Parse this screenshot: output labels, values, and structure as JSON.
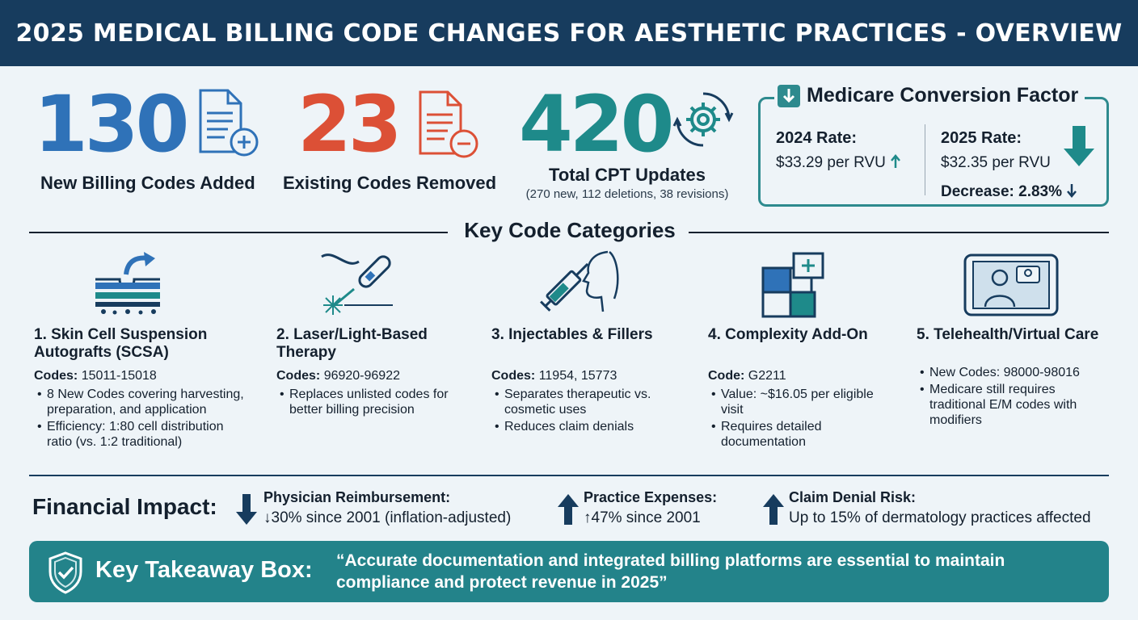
{
  "header": {
    "title": "2025 MEDICAL BILLING CODE CHANGES FOR AESTHETIC PRACTICES - OVERVIEW"
  },
  "stats": [
    {
      "number": "130",
      "label": "New Billing Codes Added",
      "color": "#2f72b8",
      "icon": "document-plus-icon"
    },
    {
      "number": "23",
      "label": "Existing Codes Removed",
      "color": "#dc5036",
      "icon": "document-minus-icon"
    },
    {
      "number": "420",
      "label": "Total CPT Updates",
      "sub": "(270 new, 112 deletions, 38 revisions)",
      "color": "#1e8a8a",
      "icon": "gear-icon"
    }
  ],
  "medicare": {
    "title": "Medicare Conversion Factor",
    "rate_2024": {
      "heading": "2024 Rate:",
      "value": "$33.29 per RVU"
    },
    "rate_2025": {
      "heading": "2025 Rate:",
      "value": "$32.35 per RVU"
    },
    "decrease": "Decrease: 2.83%"
  },
  "categories_title": "Key Code Categories",
  "categories": [
    {
      "title": "1. Skin Cell Suspension Autografts (SCSA)",
      "codes_label": "Codes:",
      "codes": "15011-15018",
      "bullets": [
        "8 New Codes covering harvesting, preparation, and application",
        "Efficiency: 1:80 cell distribution ratio (vs. 1:2 traditional)"
      ],
      "icon": "skin-layers-icon"
    },
    {
      "title": "2. Laser/Light-Based Therapy",
      "codes_label": "Codes:",
      "codes": "96920-96922",
      "bullets": [
        "Replaces unlisted codes for better billing precision"
      ],
      "icon": "laser-device-icon"
    },
    {
      "title": "3. Injectables & Fillers",
      "codes_label": "Codes:",
      "codes": "11954, 15773",
      "bullets": [
        "Separates therapeutic vs. cosmetic uses",
        "Reduces claim denials"
      ],
      "icon": "syringe-face-icon"
    },
    {
      "title": "4. Complexity Add-On",
      "codes_label": "Code:",
      "codes": "G2211",
      "bullets": [
        "Value: ~$16.05 per eligible visit",
        "Requires detailed documentation"
      ],
      "icon": "puzzle-icon"
    },
    {
      "title": "5. Telehealth/Virtual Care",
      "bullets": [
        "New Codes: 98000-98016",
        "Medicare still requires traditional E/M codes with modifiers"
      ],
      "icon": "telehealth-tablet-icon"
    }
  ],
  "financial": {
    "title": "Financial Impact:",
    "items": [
      {
        "heading": "Physician Reimbursement:",
        "value": "↓30% since 2001 (inflation-adjusted)",
        "direction": "down"
      },
      {
        "heading": "Practice Expenses:",
        "value": "↑47% since 2001",
        "direction": "up"
      },
      {
        "heading": "Claim Denial Risk:",
        "value": "Up to 15% of dermatology practices affected",
        "direction": "up"
      }
    ]
  },
  "takeaway": {
    "label": "Key Takeaway Box:",
    "quote": "“Accurate documentation and integrated billing platforms are essential to maintain compliance and protect revenue in 2025”"
  },
  "colors": {
    "navy": "#173c5e",
    "blue": "#2f72b8",
    "red": "#dc5036",
    "teal": "#1e8a8a",
    "bg": "#eef4f8"
  }
}
